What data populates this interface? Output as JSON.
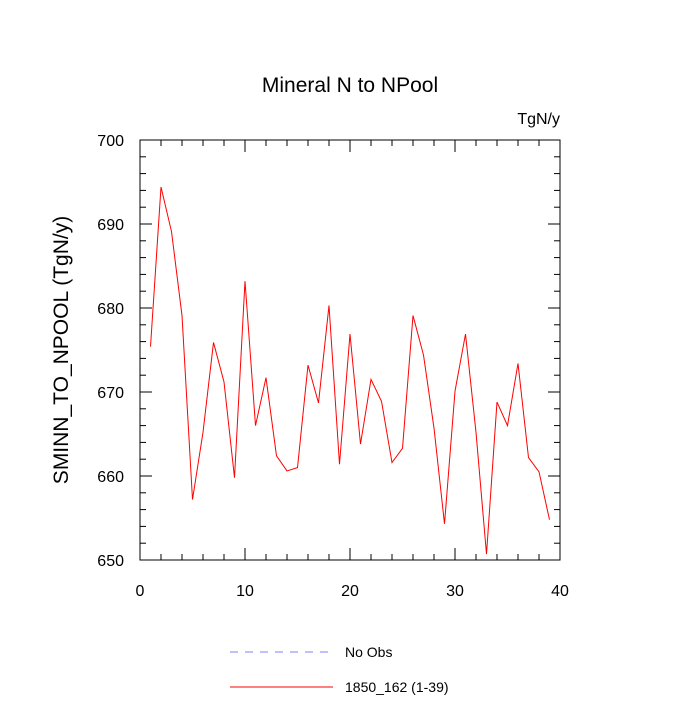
{
  "chart_data": {
    "type": "line",
    "title": "Mineral N to NPool",
    "units_label": "TgN/y",
    "ylabel": "SMINN_TO_NPOOL  (TgN/y)",
    "xlabel": "",
    "xlim": [
      0,
      40
    ],
    "ylim": [
      650,
      700
    ],
    "x_ticks": [
      0,
      10,
      20,
      30,
      40
    ],
    "y_ticks": [
      650,
      660,
      670,
      680,
      690,
      700
    ],
    "x_minor_step": 2,
    "y_minor_step": 2,
    "grid": false,
    "legend_position": "bottom",
    "series": [
      {
        "name": "No Obs",
        "color": "#8080ff",
        "dashed": true,
        "x": [],
        "values": []
      },
      {
        "name": "1850_162 (1-39)",
        "color": "#ff0000",
        "dashed": false,
        "x": [
          1,
          2,
          3,
          4,
          5,
          6,
          7,
          8,
          9,
          10,
          11,
          12,
          13,
          14,
          15,
          16,
          17,
          18,
          19,
          20,
          21,
          22,
          23,
          24,
          25,
          26,
          27,
          28,
          29,
          30,
          31,
          32,
          33,
          34,
          35,
          36,
          37,
          38,
          39
        ],
        "values": [
          675.4,
          694.4,
          689.1,
          679.1,
          657.2,
          665.2,
          675.9,
          671.2,
          659.8,
          683.2,
          666.0,
          671.7,
          662.4,
          660.6,
          661.0,
          673.2,
          668.7,
          680.3,
          661.4,
          676.9,
          663.8,
          671.5,
          668.9,
          661.6,
          663.3,
          679.1,
          674.4,
          665.7,
          654.3,
          670.1,
          676.9,
          665.2,
          650.7,
          668.8,
          666.0,
          673.4,
          662.2,
          660.5,
          654.8
        ]
      }
    ]
  }
}
